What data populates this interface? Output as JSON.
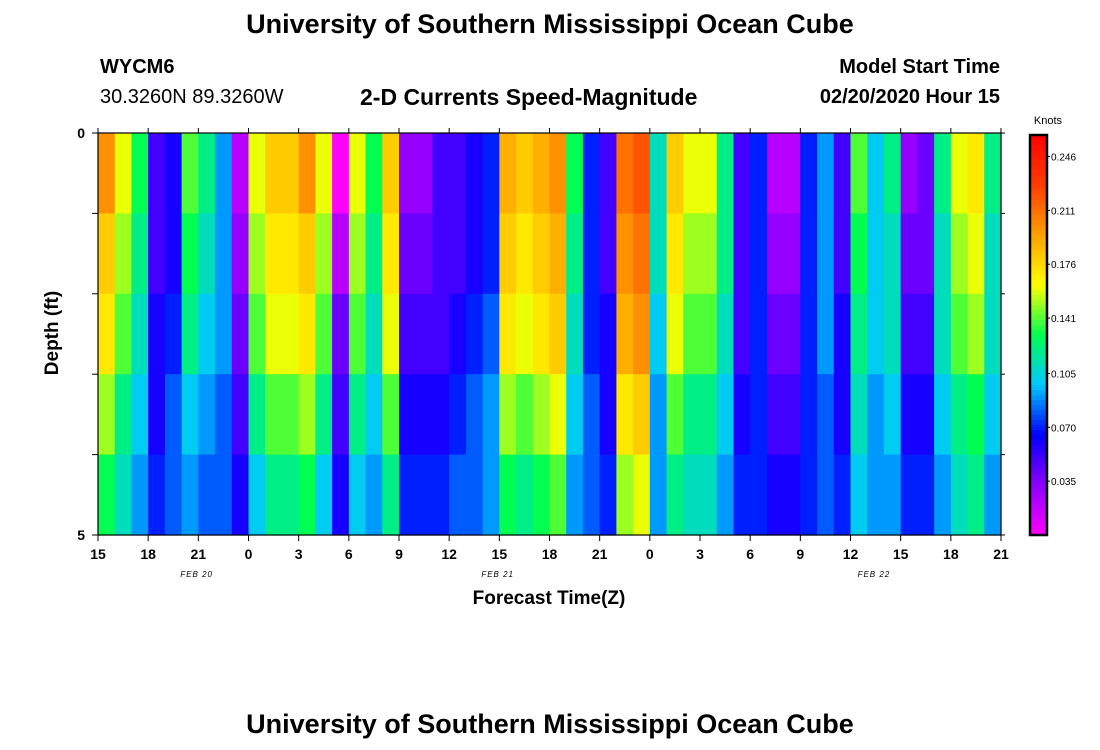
{
  "header": {
    "title": "University of Southern Mississippi Ocean Cube",
    "station_id": "WYCM6",
    "station_coords": "30.3260N 89.3260W",
    "plot_title": "2-D Currents Speed-Magnitude",
    "model_label": "Model Start Time",
    "model_time": "02/20/2020 Hour 15",
    "footer_title": "University of Southern Mississippi Ocean Cube"
  },
  "chart_data": {
    "type": "heatmap",
    "title": "2-D Currents Speed-Magnitude",
    "xlabel": "Forecast Time(Z)",
    "ylabel": "Depth (ft)",
    "x_tick_labels": [
      "15",
      "18",
      "21",
      "0",
      "3",
      "6",
      "9",
      "12",
      "15",
      "18",
      "21",
      "0",
      "3",
      "6",
      "9",
      "12",
      "15",
      "18",
      "21"
    ],
    "date_labels": [
      "FEB 20",
      "FEB 21",
      "FEB 22"
    ],
    "y_tick_labels": [
      "0",
      "5"
    ],
    "ylim": [
      0,
      5
    ],
    "colorbar": {
      "unit": "Knots",
      "tick_labels": [
        "0.246",
        "0.211",
        "0.176",
        "0.141",
        "0.105",
        "0.070",
        "0.035"
      ],
      "min": 0.0,
      "max": 0.26
    },
    "depth_levels": 5,
    "time_steps": 54,
    "values_knots": [
      [
        0.2,
        0.16,
        0.13,
        0.05,
        0.06,
        0.14,
        0.12,
        0.09,
        0.02,
        0.16,
        0.18,
        0.18,
        0.2,
        0.16,
        0.0,
        0.16,
        0.13,
        0.18,
        0.03,
        0.03,
        0.05,
        0.05,
        0.06,
        0.07,
        0.19,
        0.18,
        0.19,
        0.2,
        0.13,
        0.07,
        0.05,
        0.21,
        0.22,
        0.11,
        0.18,
        0.16,
        0.16,
        0.12,
        0.05,
        0.07,
        0.02,
        0.02,
        0.07,
        0.09,
        0.05,
        0.14,
        0.1,
        0.12,
        0.03,
        0.04,
        0.12,
        0.16,
        0.17,
        0.12
      ],
      [
        0.18,
        0.15,
        0.12,
        0.05,
        0.06,
        0.13,
        0.11,
        0.09,
        0.03,
        0.15,
        0.17,
        0.17,
        0.18,
        0.15,
        0.02,
        0.15,
        0.12,
        0.17,
        0.04,
        0.04,
        0.05,
        0.05,
        0.06,
        0.07,
        0.18,
        0.17,
        0.18,
        0.19,
        0.12,
        0.07,
        0.05,
        0.2,
        0.21,
        0.11,
        0.17,
        0.15,
        0.15,
        0.12,
        0.05,
        0.07,
        0.03,
        0.03,
        0.07,
        0.09,
        0.05,
        0.13,
        0.1,
        0.11,
        0.04,
        0.04,
        0.11,
        0.15,
        0.16,
        0.11
      ],
      [
        0.17,
        0.14,
        0.11,
        0.06,
        0.07,
        0.12,
        0.1,
        0.09,
        0.04,
        0.14,
        0.16,
        0.16,
        0.17,
        0.14,
        0.04,
        0.14,
        0.11,
        0.16,
        0.05,
        0.05,
        0.05,
        0.06,
        0.07,
        0.08,
        0.17,
        0.16,
        0.17,
        0.18,
        0.11,
        0.07,
        0.06,
        0.19,
        0.2,
        0.1,
        0.16,
        0.14,
        0.14,
        0.11,
        0.05,
        0.07,
        0.04,
        0.04,
        0.07,
        0.09,
        0.06,
        0.12,
        0.1,
        0.11,
        0.05,
        0.05,
        0.11,
        0.14,
        0.15,
        0.11
      ],
      [
        0.15,
        0.12,
        0.1,
        0.06,
        0.08,
        0.1,
        0.09,
        0.08,
        0.05,
        0.12,
        0.14,
        0.14,
        0.15,
        0.12,
        0.05,
        0.12,
        0.1,
        0.14,
        0.06,
        0.06,
        0.06,
        0.07,
        0.08,
        0.09,
        0.15,
        0.14,
        0.15,
        0.16,
        0.1,
        0.08,
        0.06,
        0.17,
        0.18,
        0.09,
        0.14,
        0.12,
        0.12,
        0.1,
        0.06,
        0.07,
        0.05,
        0.05,
        0.07,
        0.08,
        0.06,
        0.11,
        0.09,
        0.1,
        0.06,
        0.06,
        0.1,
        0.12,
        0.13,
        0.1
      ],
      [
        0.13,
        0.11,
        0.09,
        0.07,
        0.08,
        0.09,
        0.08,
        0.08,
        0.06,
        0.1,
        0.12,
        0.12,
        0.13,
        0.1,
        0.06,
        0.1,
        0.09,
        0.12,
        0.07,
        0.07,
        0.07,
        0.08,
        0.08,
        0.09,
        0.13,
        0.12,
        0.13,
        0.14,
        0.09,
        0.08,
        0.07,
        0.15,
        0.16,
        0.09,
        0.12,
        0.11,
        0.11,
        0.09,
        0.07,
        0.07,
        0.06,
        0.06,
        0.07,
        0.08,
        0.07,
        0.1,
        0.09,
        0.09,
        0.07,
        0.07,
        0.09,
        0.11,
        0.12,
        0.09
      ]
    ]
  }
}
